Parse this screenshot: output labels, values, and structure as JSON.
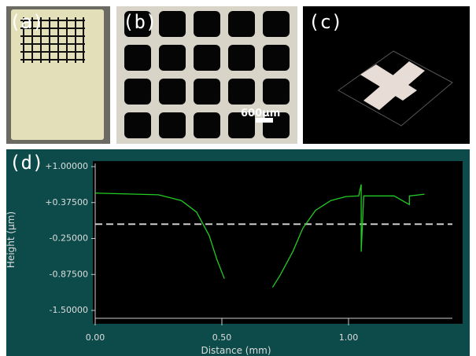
{
  "panel_labels": [
    "(a)",
    "(b)",
    "(c)",
    "(d)"
  ],
  "scale_bar": "600μm",
  "chart_data": {
    "type": "line",
    "x_label": "Distance (mm)",
    "y_label": "Height (µm)",
    "x": [
      0,
      0.25,
      0.34,
      0.4,
      0.45,
      0.48,
      0.51,
      null,
      0.7,
      0.73,
      0.78,
      0.82,
      0.87,
      0.93,
      0.99,
      1.04,
      1.05,
      1.05,
      1.06,
      1.18,
      1.24,
      1.24,
      1.3
    ],
    "values": [
      0.54,
      0.51,
      0.41,
      0.21,
      -0.2,
      -0.61,
      -0.95,
      null,
      -1.1,
      -0.89,
      -0.48,
      -0.07,
      0.24,
      0.41,
      0.48,
      0.49,
      0.69,
      -0.48,
      0.49,
      0.49,
      0.34,
      0.49,
      0.52
    ],
    "color": "#22cc22",
    "reference_line": 0,
    "reference_color": "#cccccc",
    "xlim": [
      0,
      1.41
    ],
    "ylim": [
      -1.5,
      1
    ],
    "xticks": [
      {
        "value": 0,
        "label": "0.00"
      },
      {
        "value": 0.5,
        "label": "0.50"
      },
      {
        "value": 1,
        "label": "1.00"
      }
    ],
    "yticks": [
      {
        "value": 1,
        "label": "+1.00000"
      },
      {
        "value": 0.375,
        "label": "+0.37500"
      },
      {
        "value": -0.25,
        "label": "-0.25000"
      },
      {
        "value": -0.875,
        "label": "-0.87500"
      },
      {
        "value": -1.5,
        "label": "-1.50000"
      }
    ]
  }
}
